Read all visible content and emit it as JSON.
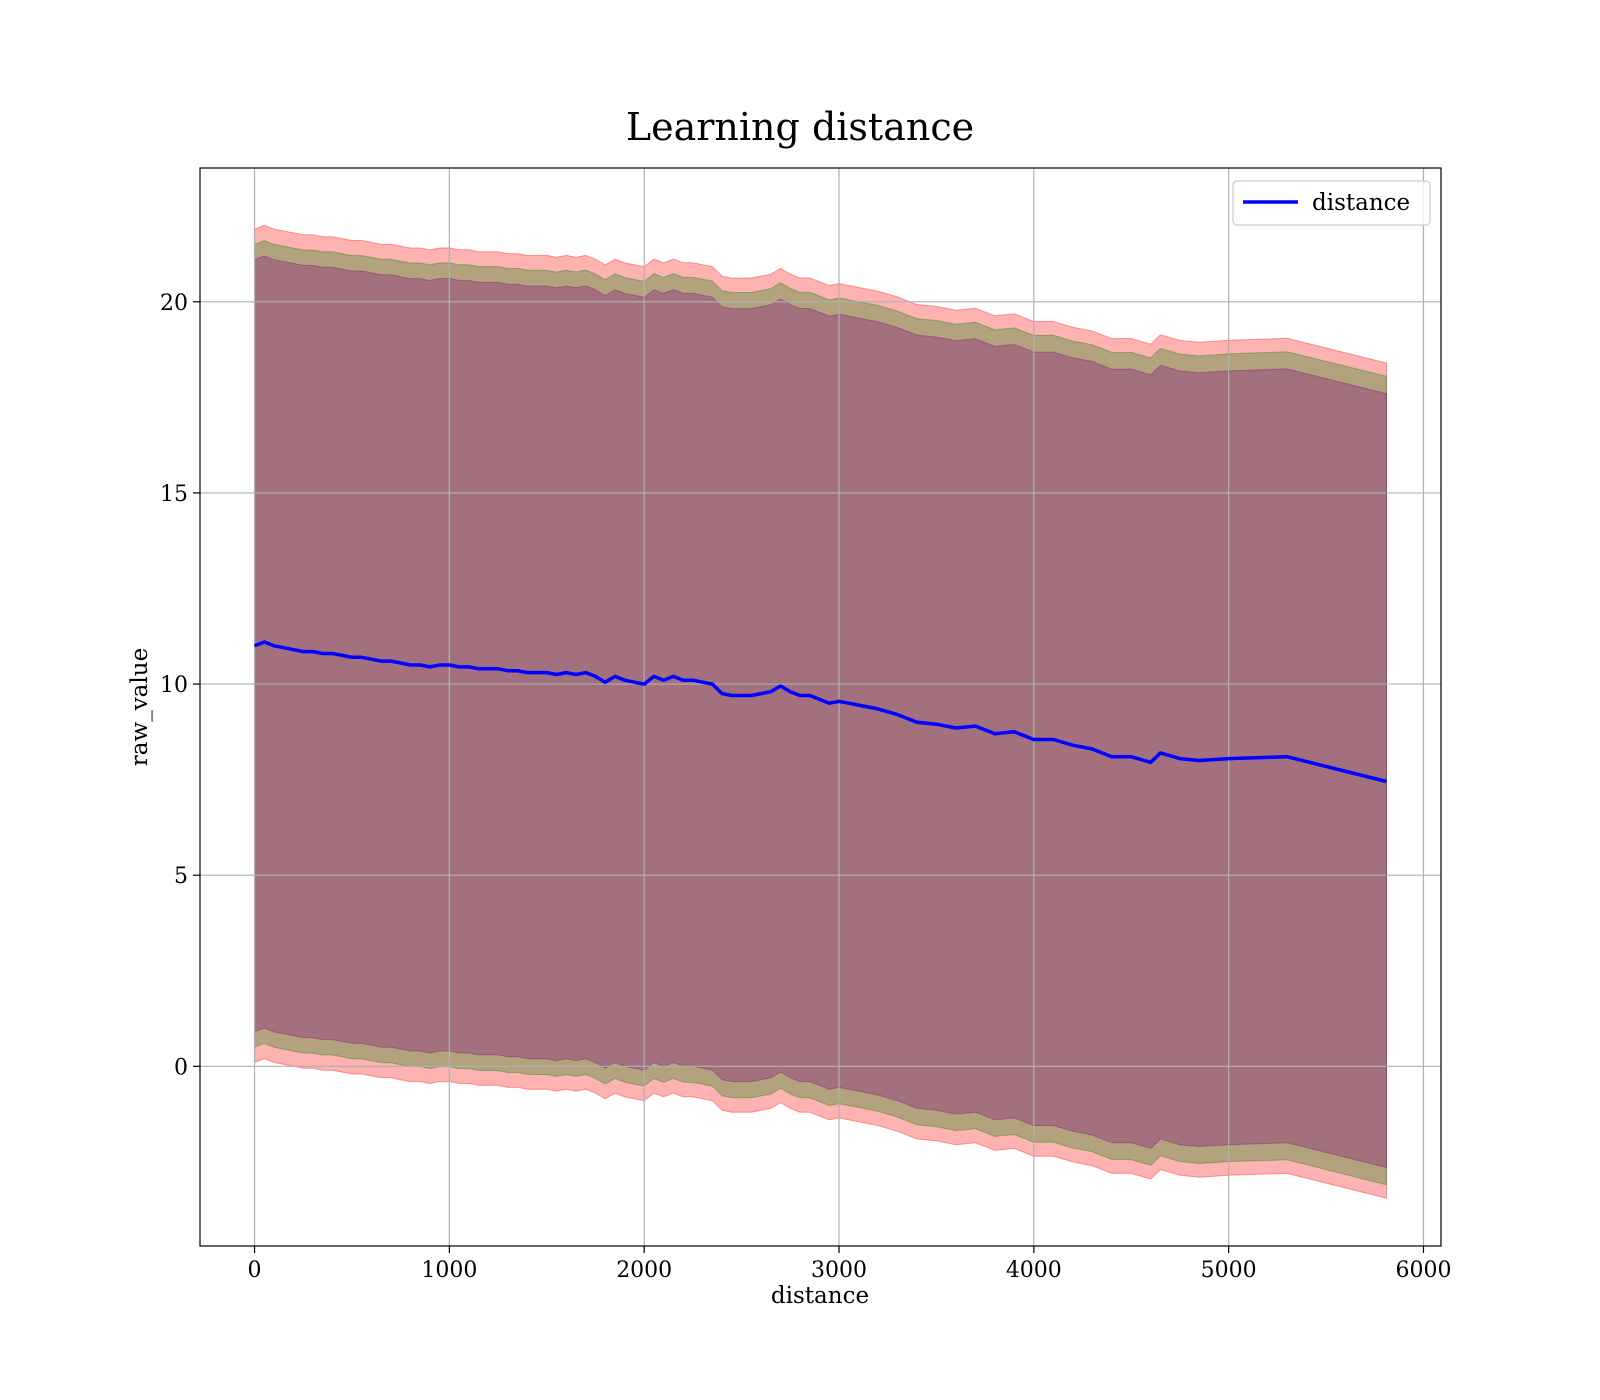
{
  "chart_data": {
    "type": "line",
    "title": "Learning distance",
    "xlabel": "distance",
    "ylabel": "raw_value",
    "xlim": [
      -280,
      6090
    ],
    "ylim": [
      -4.7,
      23.5
    ],
    "x_ticks": [
      0,
      1000,
      2000,
      3000,
      4000,
      5000,
      6000
    ],
    "y_ticks": [
      0,
      5,
      10,
      15,
      20
    ],
    "grid": true,
    "legend_position": "top-right",
    "series": [
      {
        "name": "distance",
        "color": "#0000ff",
        "x": [
          0,
          50,
          100,
          150,
          200,
          250,
          300,
          350,
          400,
          450,
          500,
          550,
          600,
          650,
          700,
          750,
          800,
          850,
          900,
          950,
          1000,
          1050,
          1100,
          1150,
          1200,
          1250,
          1300,
          1350,
          1400,
          1450,
          1500,
          1550,
          1600,
          1650,
          1700,
          1750,
          1800,
          1850,
          1900,
          1950,
          2000,
          2050,
          2100,
          2150,
          2200,
          2250,
          2300,
          2350,
          2400,
          2450,
          2500,
          2550,
          2600,
          2650,
          2700,
          2750,
          2800,
          2850,
          2900,
          2950,
          3000,
          3100,
          3200,
          3300,
          3400,
          3500,
          3600,
          3700,
          3800,
          3900,
          4000,
          4100,
          4200,
          4300,
          4400,
          4500,
          4600,
          4650,
          4750,
          4850,
          5000,
          5300,
          5810
        ],
        "y": [
          11.0,
          11.1,
          11.0,
          10.95,
          10.9,
          10.85,
          10.85,
          10.8,
          10.8,
          10.75,
          10.7,
          10.7,
          10.65,
          10.6,
          10.6,
          10.55,
          10.5,
          10.5,
          10.45,
          10.5,
          10.5,
          10.45,
          10.45,
          10.4,
          10.4,
          10.4,
          10.35,
          10.35,
          10.3,
          10.3,
          10.3,
          10.25,
          10.3,
          10.25,
          10.3,
          10.2,
          10.05,
          10.2,
          10.1,
          10.05,
          10.0,
          10.2,
          10.1,
          10.2,
          10.1,
          10.1,
          10.05,
          10.0,
          9.75,
          9.7,
          9.7,
          9.7,
          9.75,
          9.8,
          9.95,
          9.8,
          9.7,
          9.7,
          9.6,
          9.5,
          9.55,
          9.45,
          9.35,
          9.2,
          9.0,
          8.95,
          8.85,
          8.9,
          8.7,
          8.75,
          8.55,
          8.55,
          8.4,
          8.3,
          8.1,
          8.1,
          7.95,
          8.2,
          8.05,
          8.0,
          8.05,
          8.1,
          7.45
        ]
      }
    ],
    "bands": [
      {
        "color": "#ff0000",
        "opacity": 0.3,
        "lower_start": 0.1,
        "lower_end": -3.45,
        "upper_start": 21.9,
        "upper_end": 18.4
      },
      {
        "color": "#008000",
        "opacity": 0.3,
        "lower_start": 0.5,
        "lower_end": -3.1,
        "upper_start": 21.5,
        "upper_end": 18.05
      },
      {
        "color": "#800080",
        "opacity": 0.3,
        "lower_start": 0.9,
        "lower_end": -2.65,
        "upper_start": 21.1,
        "upper_end": 17.6
      }
    ]
  }
}
